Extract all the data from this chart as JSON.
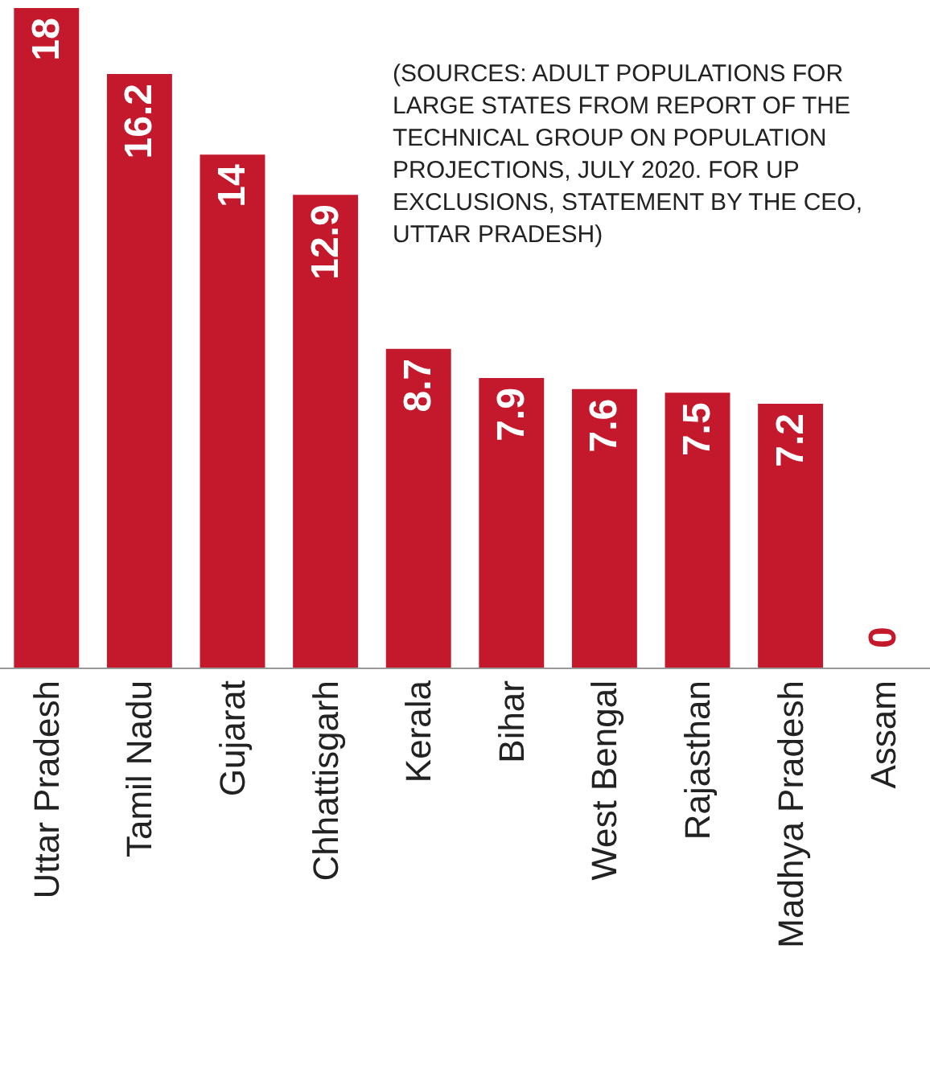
{
  "chart_data": {
    "type": "bar",
    "categories": [
      "Uttar Pradesh",
      "Tamil Nadu",
      "Gujarat",
      "Chhattisgarh",
      "Kerala",
      "Bihar",
      "West Bengal",
      "Rajasthan",
      "Madhya Pradesh",
      "Assam"
    ],
    "values": [
      18,
      16.2,
      14,
      12.9,
      8.7,
      7.9,
      7.6,
      7.5,
      7.2,
      0
    ],
    "color": "#c4182c",
    "data_labels": true,
    "annotations": [
      "(SOURCES: ADULT POPULATIONS FOR LARGE STATES FROM REPORT OF THE TECHNICAL GROUP ON POPULATION PROJECTIONS, JULY 2020. FOR UP EXCLUSIONS, STATEMENT BY THE CEO, UTTAR PRADESH)"
    ]
  }
}
